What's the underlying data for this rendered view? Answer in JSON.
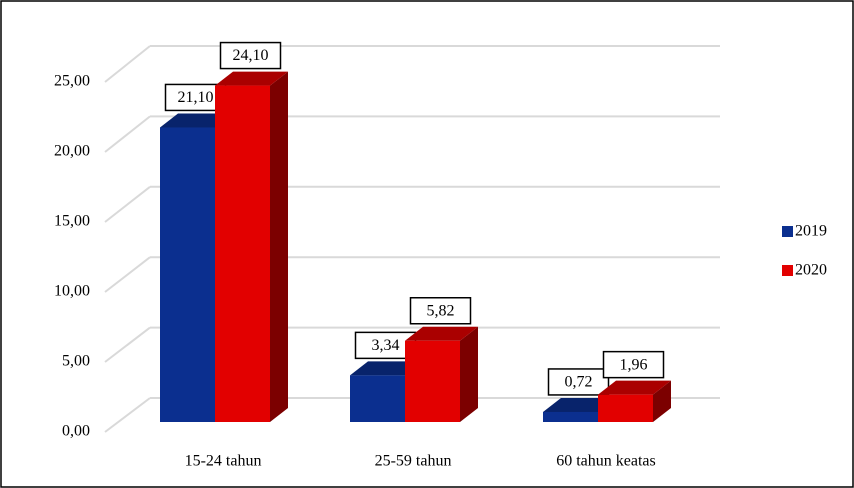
{
  "chart_data": {
    "type": "bar3d",
    "categories": [
      "15-24 tahun",
      "25-59 tahun",
      "60 tahun keatas"
    ],
    "series": [
      {
        "name": "2019",
        "color": "#0b2f8f",
        "values": [
          21.1,
          3.34,
          0.72
        ],
        "value_labels": [
          "21,10",
          "3,34",
          "0,72"
        ]
      },
      {
        "name": "2020",
        "color": "#e20000",
        "values": [
          24.1,
          5.82,
          1.96
        ],
        "value_labels": [
          "24,10",
          "5,82",
          "1,96"
        ]
      }
    ],
    "ylim": [
      0,
      25
    ],
    "yticks": [
      {
        "value": 0,
        "label": "0,00"
      },
      {
        "value": 5,
        "label": "5,00"
      },
      {
        "value": 10,
        "label": "10,00"
      },
      {
        "value": 15,
        "label": "15,00"
      },
      {
        "value": 20,
        "label": "20,00"
      },
      {
        "value": 25,
        "label": "25,00"
      }
    ],
    "grid": true,
    "legend": "right"
  }
}
